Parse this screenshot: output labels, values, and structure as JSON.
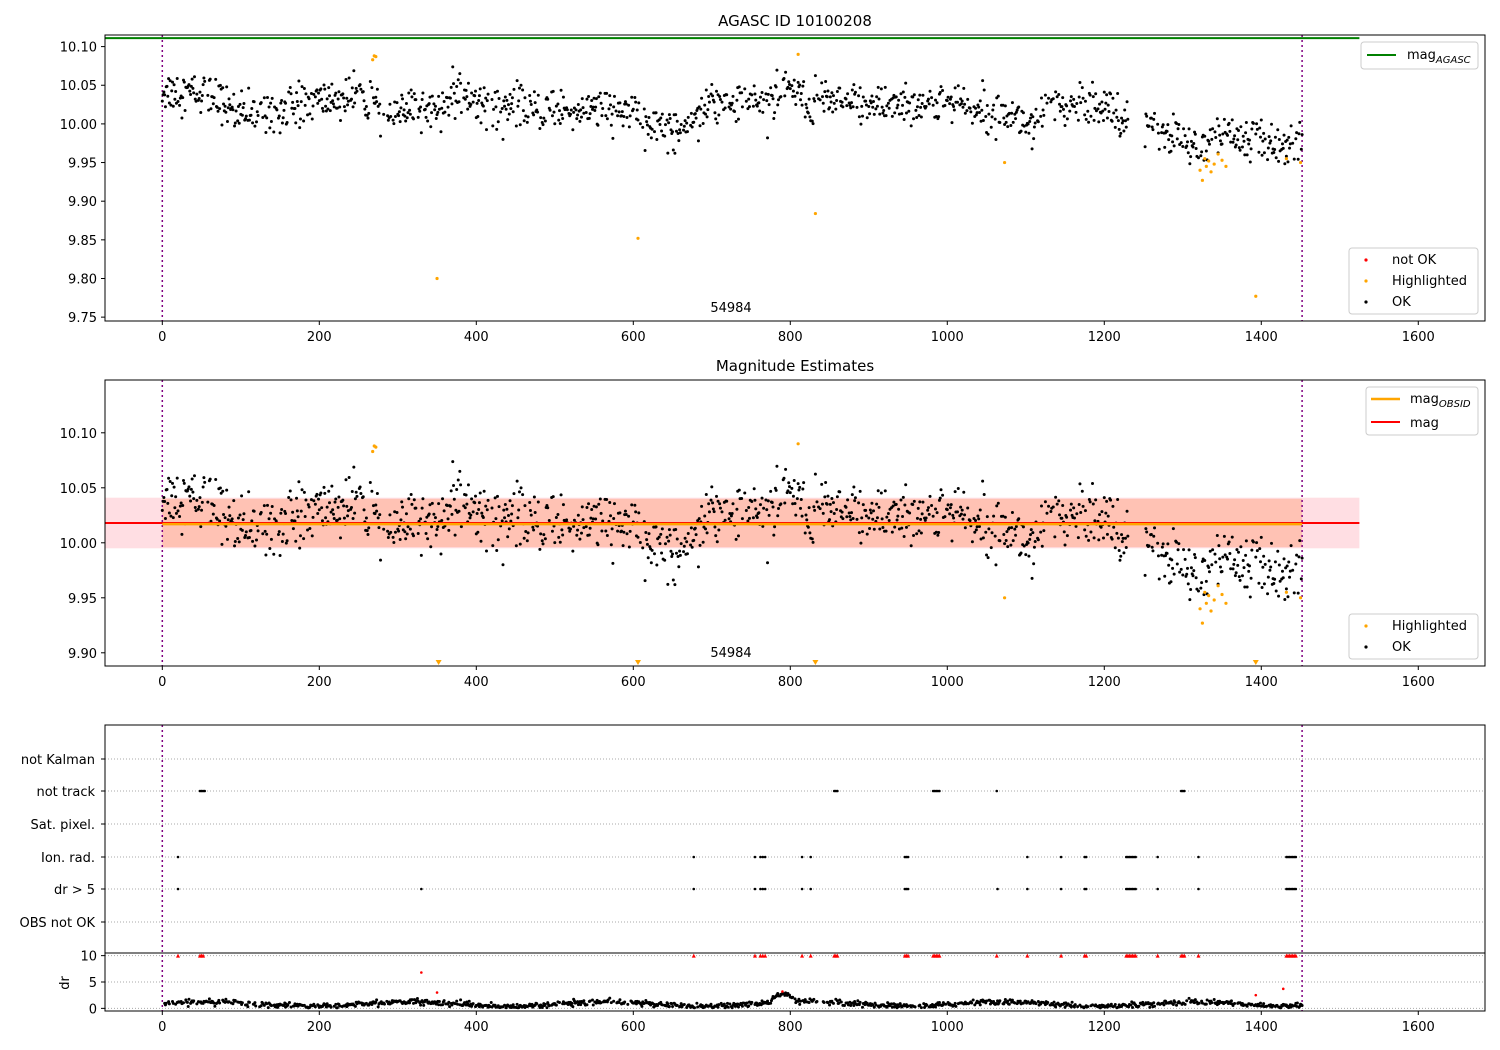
{
  "figure": {
    "title": "AGASC ID 10100208",
    "subtitle": "Magnitude Estimates"
  },
  "chart_data": [
    {
      "type": "scatter",
      "title": "AGASC ID 10100208",
      "xlabel": "",
      "ylabel": "",
      "xlim": [
        -73,
        1685
      ],
      "ylim": [
        9.745,
        10.115
      ],
      "xticks": [
        0,
        200,
        400,
        600,
        800,
        1000,
        1200,
        1400,
        1600
      ],
      "yticks": [
        9.75,
        9.8,
        9.85,
        9.9,
        9.95,
        10.0,
        10.05,
        10.1
      ],
      "ytick_labels": [
        "9.75",
        "9.80",
        "9.85",
        "9.90",
        "9.95",
        "10.00",
        "10.05",
        "10.10"
      ],
      "vlines": [
        0,
        1452
      ],
      "annotation": "54984",
      "mag_agasc": 10.111,
      "series": [
        {
          "name": "not OK",
          "color": "#ff0000",
          "values": []
        },
        {
          "name": "Highlighted",
          "color": "#ffa500",
          "x": [
            268,
            270,
            272,
            350,
            606,
            810,
            832,
            1073,
            1322,
            1325,
            1328,
            1330,
            1333,
            1336,
            1340,
            1345,
            1350,
            1355,
            1393,
            1432,
            1450
          ],
          "y": [
            10.083,
            10.088,
            10.087,
            9.8,
            9.852,
            10.09,
            9.884,
            9.95,
            9.94,
            9.927,
            9.955,
            9.945,
            9.952,
            9.938,
            9.948,
            9.961,
            9.953,
            9.945,
            9.777,
            9.955,
            9.95
          ]
        },
        {
          "name": "OK",
          "color": "#000000",
          "values": []
        }
      ],
      "legend": [
        "mag_AGASC (top-right)",
        "not OK / Highlighted / OK (bottom-right)"
      ]
    },
    {
      "type": "scatter",
      "title": "Magnitude Estimates",
      "xlim": [
        -73,
        1685
      ],
      "ylim": [
        9.888,
        10.148
      ],
      "xticks": [
        0,
        200,
        400,
        600,
        800,
        1000,
        1200,
        1400,
        1600
      ],
      "yticks": [
        9.9,
        9.95,
        10.0,
        10.05,
        10.1
      ],
      "ytick_labels": [
        "9.90",
        "9.95",
        "10.00",
        "10.05",
        "10.10"
      ],
      "vlines": [
        0,
        1452
      ],
      "annotation": "54984",
      "mag": 10.018,
      "mag_obsid": 10.017,
      "band": [
        9.995,
        10.041
      ],
      "band_obsid": [
        9.996,
        10.04
      ],
      "below_axis_markers_x": [
        352,
        606,
        832,
        1393
      ],
      "series": [
        {
          "name": "Highlighted",
          "color": "#ffa500"
        },
        {
          "name": "OK",
          "color": "#000000"
        }
      ],
      "legend_top": [
        "mag_OBSID",
        "mag"
      ],
      "legend_bottom": [
        "Highlighted",
        "OK"
      ]
    },
    {
      "type": "scatter",
      "title": "",
      "xlim": [
        -73,
        1685
      ],
      "xticks": [
        0,
        200,
        400,
        600,
        800,
        1000,
        1200,
        1400,
        1600
      ],
      "flag_categories": [
        "not Kalman",
        "not track",
        "Sat. pixel.",
        "Ion. rad.",
        "dr > 5",
        "OBS not OK"
      ],
      "flags": {
        "not Kalman": [],
        "not track": [
          48,
          50,
          52,
          54,
          856,
          858,
          860,
          982,
          984,
          986,
          988,
          990,
          1063,
          1298,
          1300,
          1302
        ],
        "Sat. pixel.": [],
        "Ion. rad.": [
          20,
          677,
          755,
          762,
          765,
          768,
          815,
          826,
          946,
          948,
          950,
          1102,
          1145,
          1175,
          1177,
          1228,
          1230,
          1232,
          1234,
          1236,
          1238,
          1240,
          1268,
          1320,
          1432,
          1434,
          1436,
          1438,
          1440,
          1442,
          1444
        ],
        "dr > 5": [
          20,
          330,
          677,
          755,
          762,
          765,
          768,
          815,
          826,
          946,
          948,
          950,
          1064,
          1102,
          1145,
          1175,
          1177,
          1228,
          1230,
          1232,
          1234,
          1236,
          1238,
          1240,
          1268,
          1320,
          1432,
          1434,
          1436,
          1438,
          1440,
          1442,
          1444
        ],
        "OBS not OK": []
      },
      "dr": {
        "ylabel": "dr",
        "ylim": [
          -0.5,
          10.5
        ],
        "yticks": [
          0,
          5,
          10
        ],
        "clip_value": 10,
        "clipped_x": [
          20,
          48,
          50,
          52,
          677,
          755,
          762,
          765,
          768,
          815,
          826,
          856,
          858,
          860,
          946,
          948,
          950,
          982,
          984,
          986,
          988,
          990,
          1063,
          1102,
          1145,
          1175,
          1177,
          1228,
          1230,
          1232,
          1234,
          1236,
          1238,
          1240,
          1268,
          1298,
          1300,
          1302,
          1320,
          1432,
          1434,
          1436,
          1438,
          1440,
          1442,
          1444
        ],
        "outliers": [
          [
            330,
            6.8
          ],
          [
            350,
            3.0
          ],
          [
            790,
            3.2
          ],
          [
            1393,
            2.5
          ],
          [
            1428,
            3.7
          ]
        ]
      },
      "vlines": [
        0,
        1452
      ]
    }
  ],
  "legends": {
    "agasc": "mag",
    "agasc_sub": "AGASC",
    "obsid": "mag",
    "obsid_sub": "OBSID",
    "mag": "mag",
    "not_ok": "not OK",
    "highlighted": "Highlighted",
    "ok": "OK"
  },
  "colors": {
    "agasc_line": "#008000",
    "mag_line": "#ff0000",
    "obsid_line": "#ffa500",
    "highlight": "#ffa500",
    "not_ok": "#ff0000",
    "ok": "#000000",
    "vline": "#800080",
    "band_mag": "#ffb6c1",
    "band_obsid": "#ffa07a"
  }
}
